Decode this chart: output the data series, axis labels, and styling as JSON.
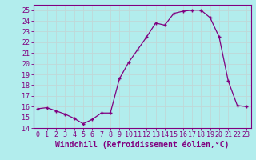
{
  "x": [
    0,
    1,
    2,
    3,
    4,
    5,
    6,
    7,
    8,
    9,
    10,
    11,
    12,
    13,
    14,
    15,
    16,
    17,
    18,
    19,
    20,
    21,
    22,
    23
  ],
  "y": [
    15.8,
    15.9,
    15.6,
    15.3,
    14.9,
    14.4,
    14.8,
    15.4,
    15.4,
    18.6,
    20.1,
    21.3,
    22.5,
    23.8,
    23.6,
    24.7,
    24.9,
    25.0,
    25.0,
    24.3,
    22.5,
    18.4,
    16.1,
    16.0
  ],
  "line_color": "#800080",
  "marker": "+",
  "bg_color": "#b2eded",
  "grid_color": "#c0d8d8",
  "xlabel": "Windchill (Refroidissement éolien,°C)",
  "xlim": [
    -0.5,
    23.5
  ],
  "ylim": [
    14,
    25.5
  ],
  "yticks": [
    14,
    15,
    16,
    17,
    18,
    19,
    20,
    21,
    22,
    23,
    24,
    25
  ],
  "xticks": [
    0,
    1,
    2,
    3,
    4,
    5,
    6,
    7,
    8,
    9,
    10,
    11,
    12,
    13,
    14,
    15,
    16,
    17,
    18,
    19,
    20,
    21,
    22,
    23
  ],
  "tick_color": "#800080",
  "label_fontsize": 7,
  "tick_fontsize": 6
}
